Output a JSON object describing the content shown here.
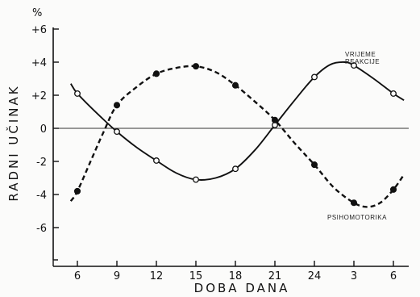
{
  "chart_data": {
    "type": "line",
    "xlabel": "DOBA DANA",
    "ylabel": "RADNI UČINAK",
    "yunit": "%",
    "x_ticks": [
      "6",
      "9",
      "12",
      "15",
      "18",
      "21",
      "24",
      "3",
      "6"
    ],
    "y_ticks": [
      "+6",
      "+4",
      "+2",
      "0",
      "-2",
      "-4",
      "-6"
    ],
    "y_tick_values": [
      6,
      4,
      2,
      0,
      -2,
      -4,
      -6
    ],
    "ylim": [
      -7.5,
      6.5
    ],
    "grid": false,
    "zero_line": true,
    "series": [
      {
        "name": "VRIJEME REAKCIJE",
        "label_lines": [
          "VRIJEME",
          "REAKCIJE"
        ],
        "style": "solid",
        "marker": "open-circle",
        "color": "#111111",
        "points": [
          {
            "x": 6,
            "y": 2.1
          },
          {
            "x": 9,
            "y": -0.2
          },
          {
            "x": 12,
            "y": -1.95
          },
          {
            "x": 15,
            "y": -3.1
          },
          {
            "x": 18,
            "y": -2.45
          },
          {
            "x": 21,
            "y": 0.2
          },
          {
            "x": 24,
            "y": 3.1
          },
          {
            "x": 27,
            "y": 3.8
          },
          {
            "x": 30,
            "y": 2.1
          }
        ],
        "curve": [
          [
            5.5,
            2.7
          ],
          [
            6,
            2.1
          ],
          [
            7.5,
            0.9
          ],
          [
            9,
            -0.2
          ],
          [
            10.5,
            -1.15
          ],
          [
            12,
            -1.95
          ],
          [
            13.5,
            -2.7
          ],
          [
            15,
            -3.1
          ],
          [
            16.5,
            -3.0
          ],
          [
            18,
            -2.45
          ],
          [
            19.5,
            -1.3
          ],
          [
            21,
            0.2
          ],
          [
            22.5,
            1.7
          ],
          [
            24,
            3.1
          ],
          [
            25.2,
            3.85
          ],
          [
            26.3,
            4.0
          ],
          [
            27,
            3.8
          ],
          [
            28.5,
            3.0
          ],
          [
            30,
            2.1
          ],
          [
            30.8,
            1.7
          ]
        ]
      },
      {
        "name": "PSIHOMOTORIKA",
        "label_lines": [
          "PSIHOMOTORIKA"
        ],
        "style": "dashed",
        "marker": "filled-circle",
        "color": "#111111",
        "points": [
          {
            "x": 6,
            "y": -3.8
          },
          {
            "x": 9,
            "y": 1.4
          },
          {
            "x": 12,
            "y": 3.3
          },
          {
            "x": 15,
            "y": 3.75
          },
          {
            "x": 18,
            "y": 2.6
          },
          {
            "x": 21,
            "y": 0.5
          },
          {
            "x": 24,
            "y": -2.2
          },
          {
            "x": 27,
            "y": -4.5
          },
          {
            "x": 30,
            "y": -3.7
          }
        ],
        "curve": [
          [
            5.5,
            -4.4
          ],
          [
            6,
            -3.8
          ],
          [
            7,
            -2.0
          ],
          [
            8,
            -0.2
          ],
          [
            9,
            1.4
          ],
          [
            10.5,
            2.5
          ],
          [
            12,
            3.3
          ],
          [
            13.5,
            3.65
          ],
          [
            15,
            3.75
          ],
          [
            16.5,
            3.4
          ],
          [
            18,
            2.6
          ],
          [
            19.5,
            1.6
          ],
          [
            21,
            0.5
          ],
          [
            22.5,
            -0.9
          ],
          [
            24,
            -2.2
          ],
          [
            25.5,
            -3.6
          ],
          [
            27,
            -4.5
          ],
          [
            28,
            -4.75
          ],
          [
            29,
            -4.5
          ],
          [
            30,
            -3.7
          ],
          [
            30.8,
            -2.8
          ]
        ]
      }
    ]
  }
}
